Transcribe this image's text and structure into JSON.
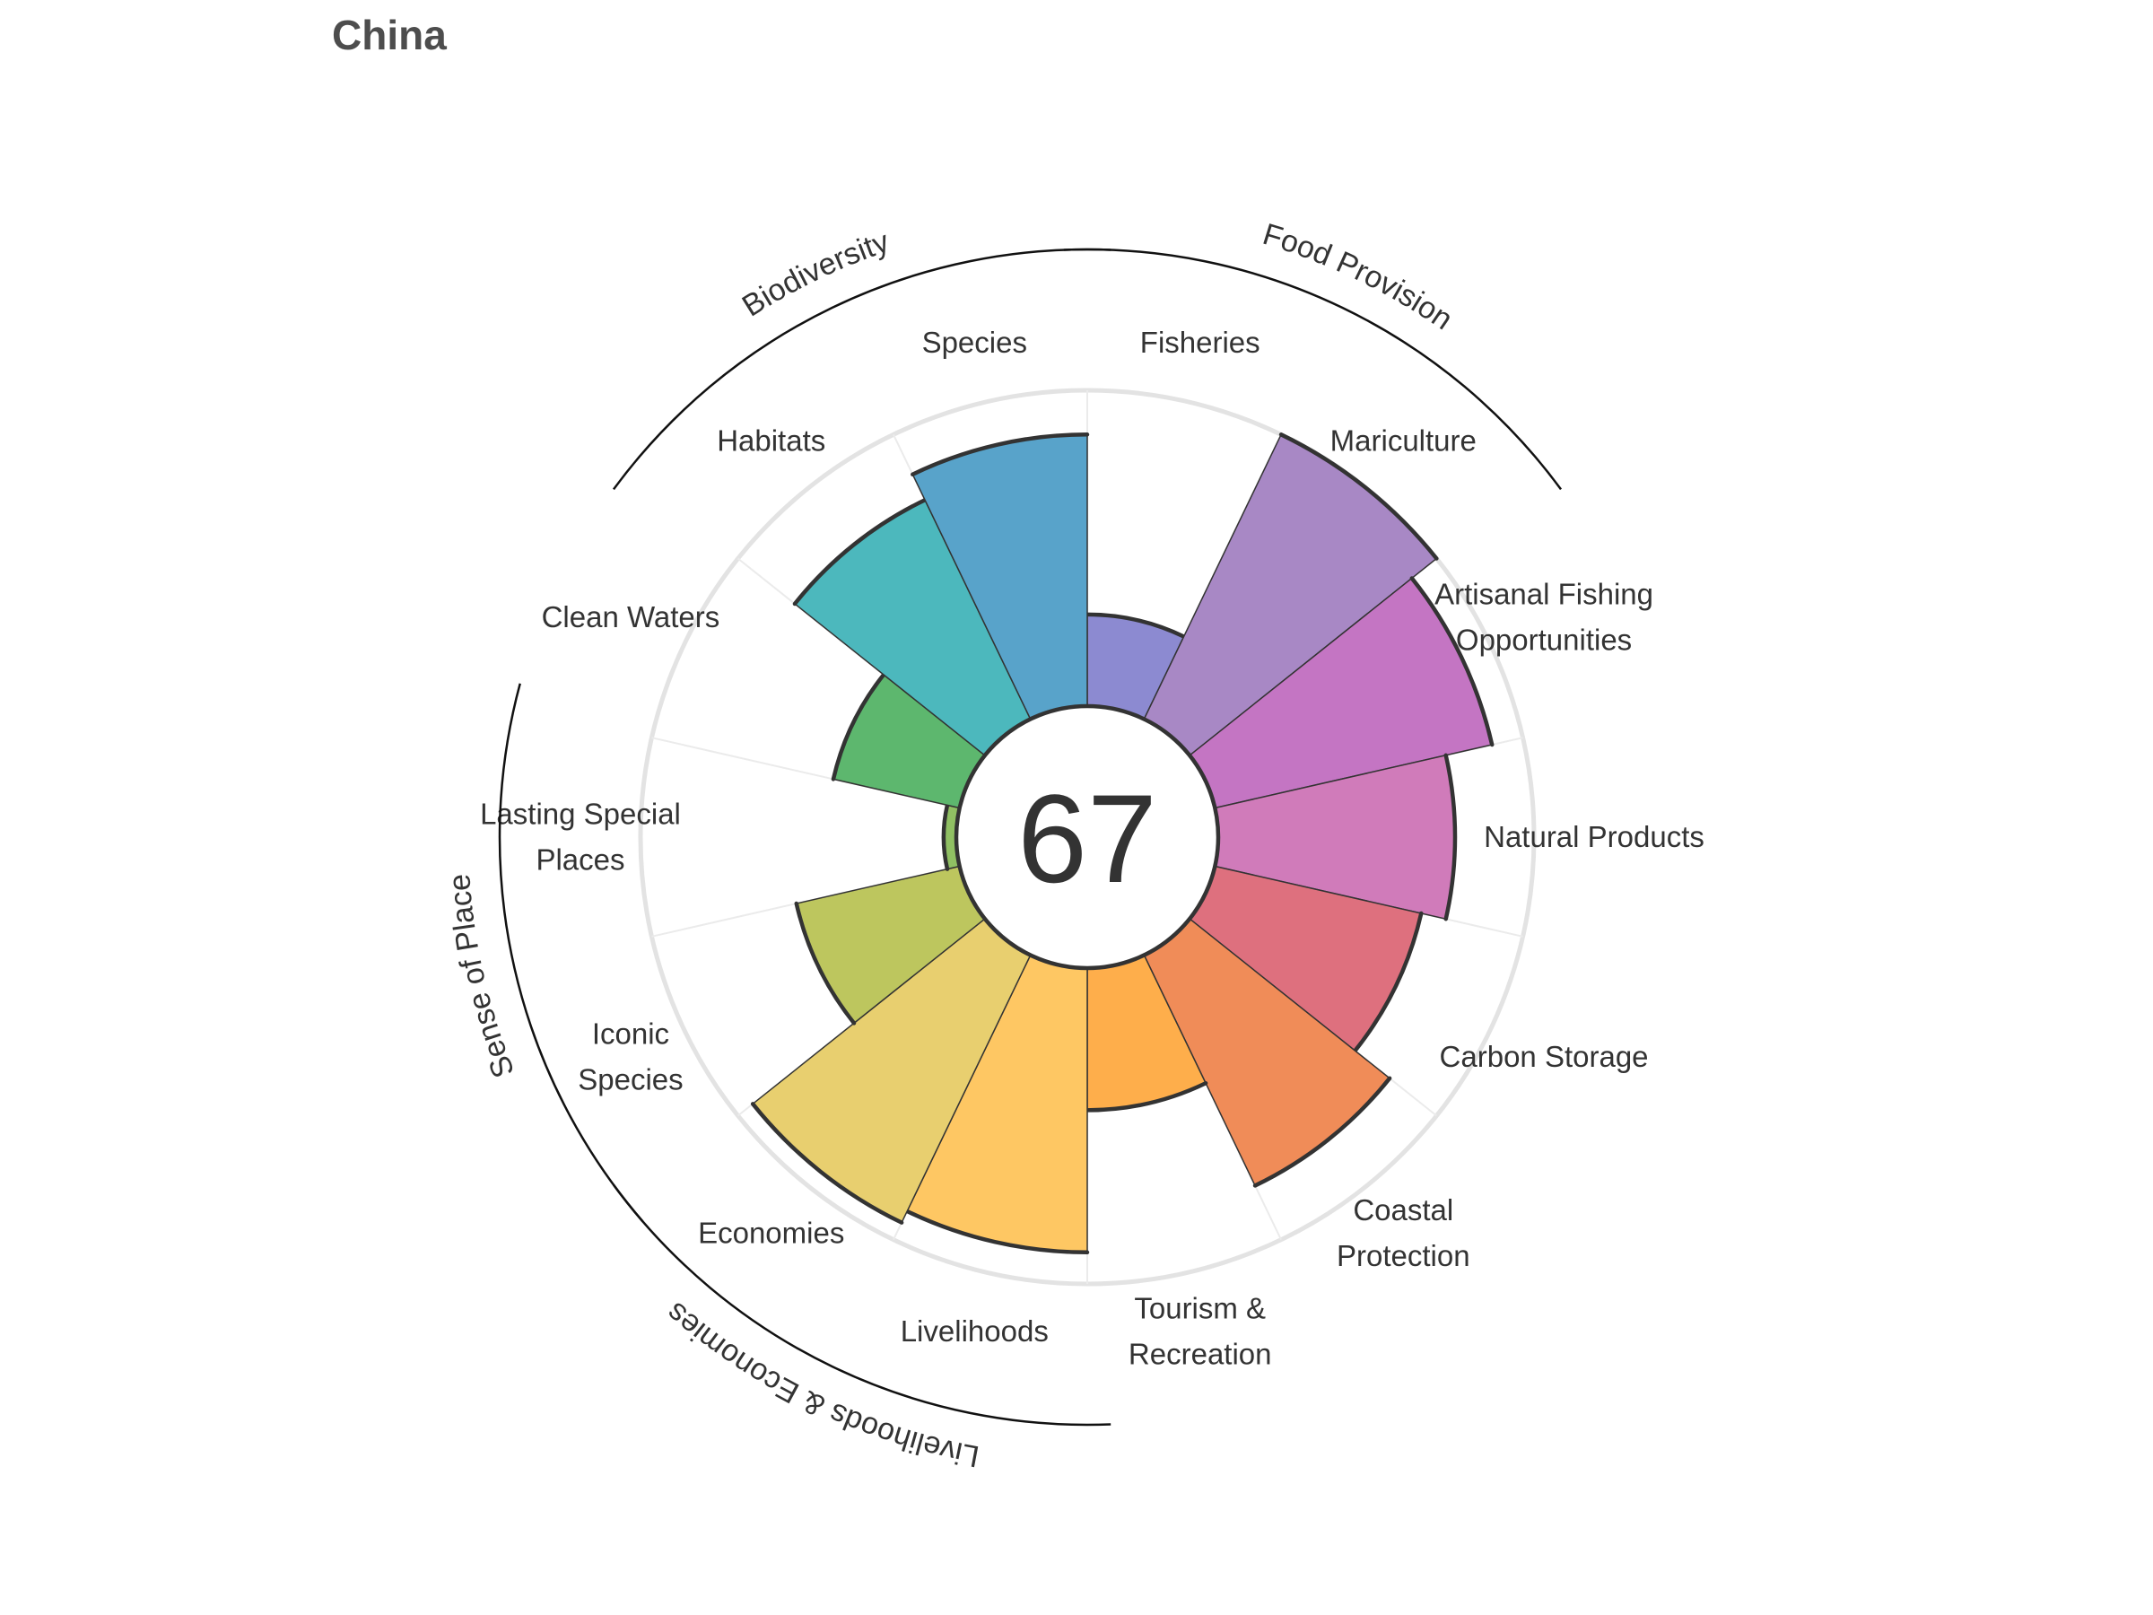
{
  "chart_data": {
    "type": "polar-bar",
    "title": "China",
    "overall_score": "67",
    "scale_max": 100,
    "petals": [
      {
        "label": "Fisheries",
        "value": 29,
        "color": "#8C8AD1"
      },
      {
        "label": "Mariculture",
        "value": 100,
        "color": "#A888C5"
      },
      {
        "label": "Artisanal Fishing Opportunities",
        "value": 90,
        "color": "#C475C3"
      },
      {
        "label": "Natural Products",
        "value": 75,
        "color": "#D07BBA"
      },
      {
        "label": "Carbon Storage",
        "value": 67,
        "color": "#DE707E"
      },
      {
        "label": "Coastal Protection",
        "value": 81,
        "color": "#F08C58"
      },
      {
        "label": "Tourism & Recreation",
        "value": 45,
        "color": "#FEAE4B"
      },
      {
        "label": "Livelihoods",
        "value": 90,
        "color": "#FEC763"
      },
      {
        "label": "Economies",
        "value": 94,
        "color": "#E8CF6F"
      },
      {
        "label": "Iconic Species",
        "value": 53,
        "color": "#BDC65E"
      },
      {
        "label": "Lasting Special Places",
        "value": 4,
        "color": "#90C063"
      },
      {
        "label": "Clean Waters",
        "value": 41,
        "color": "#5DB76E"
      },
      {
        "label": "Habitats",
        "value": 77,
        "color": "#4CB8BD"
      },
      {
        "label": "Species",
        "value": 86,
        "color": "#58A3CA"
      }
    ],
    "petal_label_lines": [
      [
        "Fisheries"
      ],
      [
        "Mariculture"
      ],
      [
        "Artisanal Fishing",
        "Opportunities"
      ],
      [
        "Natural Products"
      ],
      [
        "Carbon Storage"
      ],
      [
        "Coastal",
        "Protection"
      ],
      [
        "Tourism &",
        "Recreation"
      ],
      [
        "Livelihoods"
      ],
      [
        "Economies"
      ],
      [
        "Iconic",
        "Species"
      ],
      [
        "Lasting Special",
        "Places"
      ],
      [
        "Clean Waters"
      ],
      [
        "Habitats"
      ],
      [
        "Species"
      ]
    ],
    "groups": [
      {
        "label": "Food Provision",
        "petals": [
          0,
          1
        ]
      },
      {
        "label": "Biodiversity",
        "petals": [
          12,
          13
        ]
      },
      {
        "label": "Sense of Place",
        "petals": [
          9,
          10
        ]
      },
      {
        "label": "Livelihoods & Economies",
        "petals": [
          7,
          8
        ]
      }
    ],
    "grid": true,
    "legend": "none"
  }
}
